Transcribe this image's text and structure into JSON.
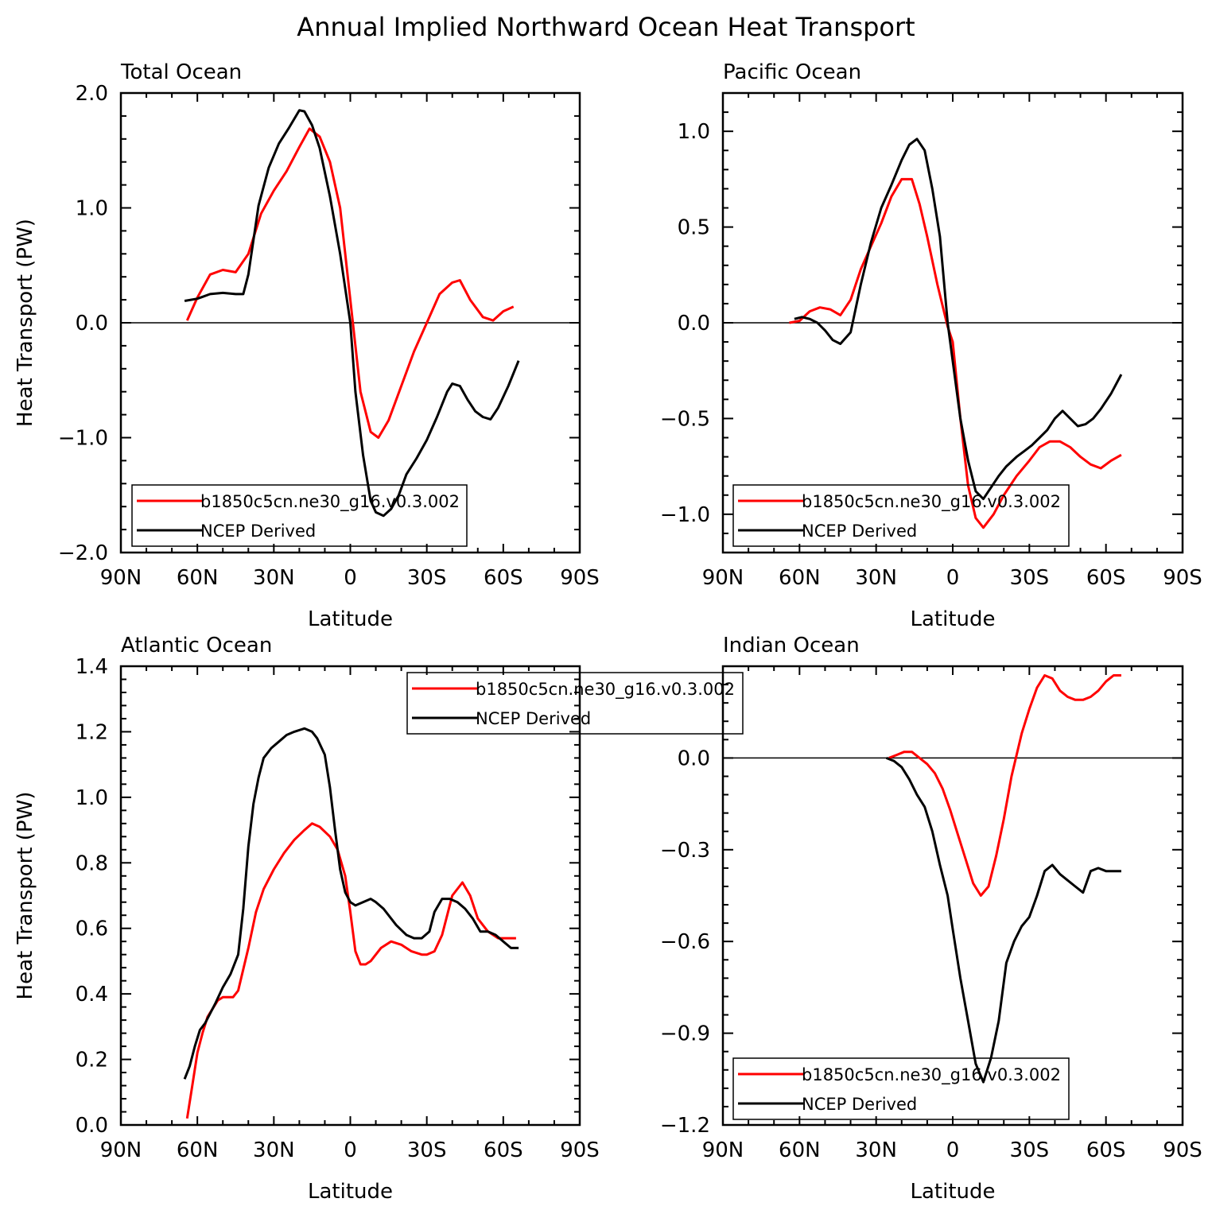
{
  "title": "Annual Implied Northward Ocean Heat Transport",
  "colors": {
    "model": "#ff0000",
    "obs": "#000000",
    "axis": "#000000"
  },
  "chart_data": [
    {
      "type": "line",
      "panel_title": "Total Ocean",
      "xlabel": "Latitude",
      "ylabel": "Heat Transport (PW)",
      "x_ticks": [
        90,
        60,
        30,
        0,
        -30,
        -60,
        -90
      ],
      "x_tick_labels": [
        "90N",
        "60N",
        "30N",
        "0",
        "30S",
        "60S",
        "90S"
      ],
      "xlim": [
        90,
        -90
      ],
      "ylim": [
        -2.0,
        2.0
      ],
      "y_ticks": [
        -2.0,
        -1.0,
        0.0,
        1.0,
        2.0
      ],
      "y_tick_labels": [
        "−2.0",
        "−1.0",
        "0.0",
        "1.0",
        "2.0"
      ],
      "legend": {
        "position": "bottom-left",
        "entries": [
          "b1850c5cn.ne30_g16.v0.3.002",
          "NCEP Derived"
        ]
      },
      "series": [
        {
          "name": "b1850c5cn.ne30_g16.v0.3.002",
          "color": "#ff0000",
          "x": [
            64,
            60,
            55,
            50,
            45,
            40,
            35,
            30,
            25,
            20,
            16,
            12,
            8,
            4,
            0,
            -4,
            -8,
            -11,
            -15,
            -20,
            -25,
            -30,
            -35,
            -40,
            -43,
            -47,
            -52,
            -56,
            -60,
            -64
          ],
          "y": [
            0.02,
            0.22,
            0.42,
            0.46,
            0.44,
            0.6,
            0.95,
            1.15,
            1.32,
            1.53,
            1.69,
            1.62,
            1.4,
            1.0,
            0.2,
            -0.6,
            -0.95,
            -1.0,
            -0.85,
            -0.55,
            -0.25,
            0.0,
            0.25,
            0.35,
            0.37,
            0.2,
            0.05,
            0.02,
            0.1,
            0.14
          ]
        },
        {
          "name": "NCEP Derived",
          "color": "#000000",
          "x": [
            65,
            60,
            55,
            50,
            45,
            42,
            40,
            36,
            32,
            28,
            24,
            20,
            18,
            15,
            12,
            8,
            4,
            0,
            -2,
            -5,
            -8,
            -10,
            -13,
            -16,
            -19,
            -22,
            -26,
            -30,
            -34,
            -38,
            -40,
            -43,
            -46,
            -49,
            -52,
            -55,
            -58,
            -62,
            -66
          ],
          "y": [
            0.19,
            0.21,
            0.25,
            0.26,
            0.25,
            0.25,
            0.42,
            1.02,
            1.35,
            1.56,
            1.7,
            1.85,
            1.84,
            1.72,
            1.52,
            1.1,
            0.6,
            0.0,
            -0.6,
            -1.15,
            -1.55,
            -1.65,
            -1.68,
            -1.62,
            -1.5,
            -1.32,
            -1.18,
            -1.02,
            -0.82,
            -0.6,
            -0.53,
            -0.55,
            -0.67,
            -0.77,
            -0.82,
            -0.84,
            -0.74,
            -0.55,
            -0.33
          ]
        }
      ]
    },
    {
      "type": "line",
      "panel_title": "Pacific Ocean",
      "xlabel": "Latitude",
      "ylabel": "",
      "x_ticks": [
        90,
        60,
        30,
        0,
        -30,
        -60,
        -90
      ],
      "x_tick_labels": [
        "90N",
        "60N",
        "30N",
        "0",
        "30S",
        "60S",
        "90S"
      ],
      "xlim": [
        90,
        -90
      ],
      "ylim": [
        -1.2,
        1.2
      ],
      "y_ticks": [
        -1.0,
        -0.5,
        0.0,
        0.5,
        1.0
      ],
      "y_tick_labels": [
        "−1.0",
        "−0.5",
        "0.0",
        "0.5",
        "1.0"
      ],
      "legend": {
        "position": "bottom-left",
        "entries": [
          "b1850c5cn.ne30_g16.v0.3.002",
          "NCEP Derived"
        ]
      },
      "series": [
        {
          "name": "b1850c5cn.ne30_g16.v0.3.002",
          "color": "#ff0000",
          "x": [
            64,
            60,
            56,
            52,
            48,
            44,
            40,
            36,
            32,
            28,
            24,
            20,
            16,
            13,
            10,
            6,
            2,
            0,
            -3,
            -6,
            -9,
            -12,
            -16,
            -20,
            -25,
            -30,
            -34,
            -38,
            -42,
            -46,
            -50,
            -54,
            -58,
            -62,
            -66
          ],
          "y": [
            0.0,
            0.01,
            0.06,
            0.08,
            0.07,
            0.04,
            0.12,
            0.28,
            0.4,
            0.52,
            0.66,
            0.75,
            0.75,
            0.62,
            0.45,
            0.2,
            -0.02,
            -0.1,
            -0.5,
            -0.85,
            -1.02,
            -1.07,
            -1.0,
            -0.9,
            -0.8,
            -0.72,
            -0.65,
            -0.62,
            -0.62,
            -0.65,
            -0.7,
            -0.74,
            -0.76,
            -0.72,
            -0.69
          ]
        },
        {
          "name": "NCEP Derived",
          "color": "#000000",
          "x": [
            62,
            59,
            56,
            53,
            50,
            47,
            44,
            40,
            36,
            32,
            28,
            24,
            20,
            17,
            14,
            11,
            8,
            5,
            2,
            0,
            -3,
            -6,
            -9,
            -12,
            -15,
            -18,
            -21,
            -25,
            -28,
            -31,
            -34,
            -37,
            -40,
            -43,
            -46,
            -49,
            -52,
            -55,
            -58,
            -62,
            -66
          ],
          "y": [
            0.02,
            0.03,
            0.02,
            0.0,
            -0.04,
            -0.09,
            -0.11,
            -0.05,
            0.2,
            0.42,
            0.6,
            0.72,
            0.85,
            0.93,
            0.96,
            0.9,
            0.7,
            0.45,
            0.0,
            -0.2,
            -0.5,
            -0.72,
            -0.88,
            -0.92,
            -0.86,
            -0.8,
            -0.75,
            -0.7,
            -0.67,
            -0.64,
            -0.6,
            -0.56,
            -0.5,
            -0.46,
            -0.5,
            -0.54,
            -0.53,
            -0.5,
            -0.45,
            -0.37,
            -0.27
          ]
        }
      ]
    },
    {
      "type": "line",
      "panel_title": "Atlantic Ocean",
      "xlabel": "Latitude",
      "ylabel": "Heat Transport (PW)",
      "x_ticks": [
        90,
        60,
        30,
        0,
        -30,
        -60,
        -90
      ],
      "x_tick_labels": [
        "90N",
        "60N",
        "30N",
        "0",
        "30S",
        "60S",
        "90S"
      ],
      "xlim": [
        90,
        -90
      ],
      "ylim": [
        0.0,
        1.4
      ],
      "y_ticks": [
        0.0,
        0.2,
        0.4,
        0.6,
        0.8,
        1.0,
        1.2,
        1.4
      ],
      "y_tick_labels": [
        "0.0",
        "0.2",
        "0.4",
        "0.6",
        "0.8",
        "1.0",
        "1.2",
        "1.4"
      ],
      "legend": {
        "position": "top-center",
        "entries": [
          "b1850c5cn.ne30_g16.v0.3.002",
          "NCEP Derived"
        ]
      },
      "series": [
        {
          "name": "b1850c5cn.ne30_g16.v0.3.002",
          "color": "#ff0000",
          "x": [
            64,
            62,
            60,
            58,
            56,
            52,
            50,
            46,
            44,
            40,
            37,
            34,
            30,
            26,
            22,
            18,
            15,
            12,
            8,
            5,
            2,
            0,
            -2,
            -4,
            -6,
            -8,
            -12,
            -16,
            -20,
            -24,
            -28,
            -30,
            -33,
            -36,
            -40,
            -44,
            -47,
            -50,
            -54,
            -58,
            -62,
            -65
          ],
          "y": [
            0.02,
            0.12,
            0.22,
            0.28,
            0.33,
            0.38,
            0.39,
            0.39,
            0.41,
            0.54,
            0.65,
            0.72,
            0.78,
            0.83,
            0.87,
            0.9,
            0.92,
            0.91,
            0.88,
            0.84,
            0.76,
            0.65,
            0.53,
            0.49,
            0.49,
            0.5,
            0.54,
            0.56,
            0.55,
            0.53,
            0.52,
            0.52,
            0.53,
            0.58,
            0.7,
            0.74,
            0.7,
            0.63,
            0.59,
            0.57,
            0.57,
            0.57
          ]
        },
        {
          "name": "NCEP Derived",
          "color": "#000000",
          "x": [
            65,
            63,
            61,
            59,
            57,
            53,
            50,
            47,
            44,
            42,
            40,
            38,
            36,
            34,
            31,
            28,
            25,
            22,
            18,
            15,
            13,
            10,
            8,
            6,
            4,
            2,
            0,
            -2,
            -5,
            -8,
            -10,
            -13,
            -18,
            -22,
            -25,
            -28,
            -31,
            -33,
            -36,
            -39,
            -42,
            -45,
            -48,
            -51,
            -54,
            -57,
            -60,
            -63,
            -66
          ],
          "y": [
            0.14,
            0.18,
            0.24,
            0.29,
            0.31,
            0.37,
            0.42,
            0.46,
            0.52,
            0.66,
            0.85,
            0.98,
            1.06,
            1.12,
            1.15,
            1.17,
            1.19,
            1.2,
            1.21,
            1.2,
            1.18,
            1.13,
            1.03,
            0.9,
            0.78,
            0.71,
            0.68,
            0.67,
            0.68,
            0.69,
            0.68,
            0.66,
            0.61,
            0.58,
            0.57,
            0.57,
            0.59,
            0.65,
            0.69,
            0.69,
            0.68,
            0.66,
            0.63,
            0.59,
            0.59,
            0.58,
            0.56,
            0.54,
            0.54
          ]
        }
      ]
    },
    {
      "type": "line",
      "panel_title": "Indian Ocean",
      "xlabel": "Latitude",
      "ylabel": "",
      "x_ticks": [
        90,
        60,
        30,
        0,
        -30,
        -60,
        -90
      ],
      "x_tick_labels": [
        "90N",
        "60N",
        "30N",
        "0",
        "30S",
        "60S",
        "90S"
      ],
      "xlim": [
        90,
        -90
      ],
      "ylim": [
        -1.2,
        0.3
      ],
      "y_ticks": [
        -1.2,
        -0.9,
        -0.6,
        -0.3,
        0.0
      ],
      "y_tick_labels": [
        "−1.2",
        "−0.9",
        "−0.6",
        "−0.3",
        "0.0"
      ],
      "legend": {
        "position": "bottom-left",
        "entries": [
          "b1850c5cn.ne30_g16.v0.3.002",
          "NCEP Derived"
        ]
      },
      "series": [
        {
          "name": "b1850c5cn.ne30_g16.v0.3.002",
          "color": "#ff0000",
          "x": [
            25,
            22,
            19,
            16,
            13,
            10,
            7,
            4,
            1,
            -2,
            -5,
            -8,
            -11,
            -14,
            -17,
            -20,
            -23,
            -27,
            -30,
            -33,
            -36,
            -39,
            -42,
            -45,
            -48,
            -51,
            -54,
            -57,
            -60,
            -63,
            -66
          ],
          "y": [
            0.0,
            0.01,
            0.02,
            0.02,
            0.0,
            -0.02,
            -0.05,
            -0.1,
            -0.17,
            -0.25,
            -0.33,
            -0.41,
            -0.45,
            -0.42,
            -0.32,
            -0.2,
            -0.06,
            0.08,
            0.16,
            0.23,
            0.27,
            0.26,
            0.22,
            0.2,
            0.19,
            0.19,
            0.2,
            0.22,
            0.25,
            0.27,
            0.27
          ]
        },
        {
          "name": "NCEP Derived",
          "color": "#000000",
          "x": [
            26,
            23,
            20,
            17,
            14,
            11,
            8,
            5,
            2,
            0,
            -3,
            -6,
            -9,
            -12,
            -15,
            -18,
            -21,
            -24,
            -27,
            -30,
            -33,
            -36,
            -39,
            -42,
            -45,
            -48,
            -51,
            -54,
            -57,
            -60,
            -63,
            -66
          ],
          "y": [
            0.0,
            -0.01,
            -0.03,
            -0.07,
            -0.12,
            -0.16,
            -0.24,
            -0.35,
            -0.45,
            -0.56,
            -0.72,
            -0.86,
            -1.0,
            -1.06,
            -0.98,
            -0.86,
            -0.67,
            -0.6,
            -0.55,
            -0.52,
            -0.45,
            -0.37,
            -0.35,
            -0.38,
            -0.4,
            -0.42,
            -0.44,
            -0.37,
            -0.36,
            -0.37,
            -0.37,
            -0.37
          ]
        }
      ]
    }
  ]
}
